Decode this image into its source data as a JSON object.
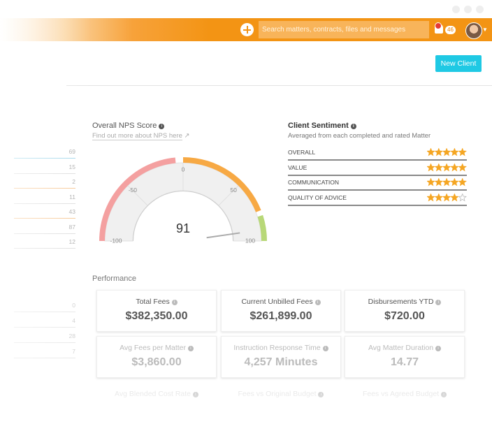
{
  "header": {
    "search_placeholder": "Search matters, contracts, files and messages",
    "notification_count": "46"
  },
  "toolbar": {
    "button": "New Client"
  },
  "side_list": {
    "top": [
      "69",
      "15",
      "2",
      "11",
      "43",
      "87",
      "12"
    ],
    "bottom": [
      "0",
      "4",
      "28",
      "7"
    ]
  },
  "nps": {
    "title": "Overall NPS Score",
    "link": "Find out more about NPS here",
    "min": -100,
    "max": 100,
    "ticks": [
      {
        "value": -100,
        "label": "-100"
      },
      {
        "value": -50,
        "label": "-50"
      },
      0,
      50,
      100
    ],
    "score": 91
  },
  "sentiment": {
    "title": "Client Sentiment",
    "subtitle": "Averaged from each completed and rated Matter",
    "max_stars": 5,
    "rows": [
      {
        "label": "OVERALL",
        "rating": 5
      },
      {
        "label": "VALUE",
        "rating": 5
      },
      {
        "label": "COMMUNICATION",
        "rating": 5
      },
      {
        "label": "QUALITY OF ADVICE",
        "rating": 4
      }
    ]
  },
  "performance": {
    "title": "Performance",
    "cards": [
      {
        "label": "Total Fees",
        "value": "$382,350.00"
      },
      {
        "label": "Current Unbilled Fees",
        "value": "$261,899.00"
      },
      {
        "label": "Disbursements YTD",
        "value": "$720.00"
      },
      {
        "label": "Avg Fees per Matter",
        "value": "$3,860.00"
      },
      {
        "label": "Instruction Response Time",
        "value": "4,257 Minutes"
      },
      {
        "label": "Avg Matter Duration",
        "value": "14.77"
      },
      {
        "label": "Avg Blended Cost Rate"
      },
      {
        "label": "Fees vs Original Budget"
      },
      {
        "label": "Fees vs Agreed Budget"
      }
    ]
  }
}
